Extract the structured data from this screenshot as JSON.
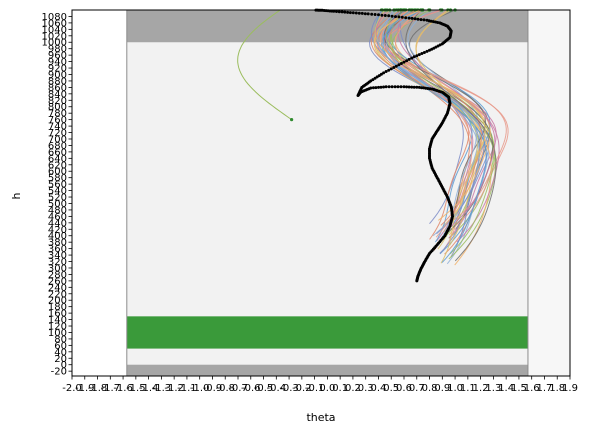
{
  "chart_data": {
    "type": "line",
    "xlabel": "theta",
    "ylabel": "h",
    "xlim": [
      -2.0,
      1.9
    ],
    "ylim": [
      -35,
      1100
    ],
    "grid": false,
    "legend": "none",
    "x_tick_labels": [
      "-2.0",
      "-1.9",
      "-1.8",
      "-1.7",
      "-1.6",
      "-1.5",
      "-1.4",
      "-1.3",
      "-1.2",
      "-1.1",
      "-1.0",
      "-0.9",
      "-0.8",
      "-0.7",
      "-0.6",
      "-0.5",
      "-0.4",
      "-0.3",
      "-0.2",
      "-0.1",
      "0.0",
      "0.1",
      "0.2",
      "0.3",
      "0.4",
      "0.5",
      "0.6",
      "0.7",
      "0.8",
      "0.9",
      "1.0",
      "1.1",
      "1.2",
      "1.3",
      "1.4",
      "1.5",
      "1.6",
      "1.7",
      "1.8",
      "1.9"
    ],
    "y_tick_labels": [
      "-20",
      "0",
      "20",
      "40",
      "60",
      "80",
      "100",
      "120",
      "140",
      "160",
      "180",
      "200",
      "220",
      "240",
      "260",
      "280",
      "300",
      "320",
      "340",
      "360",
      "380",
      "400",
      "420",
      "440",
      "460",
      "480",
      "500",
      "520",
      "540",
      "560",
      "580",
      "600",
      "620",
      "640",
      "660",
      "680",
      "700",
      "720",
      "740",
      "760",
      "780",
      "800",
      "820",
      "840",
      "860",
      "880",
      "900",
      "920",
      "940",
      "960",
      "980",
      "1000",
      "1020",
      "1040",
      "1060",
      "1080"
    ],
    "bounds": {
      "x_left": -1.5708,
      "x_right": 1.5708
    },
    "regions": [
      {
        "name": "bottom-band",
        "x": [
          -1.5708,
          1.5708
        ],
        "y": [
          -35,
          0
        ],
        "color": "#a6a6a6"
      },
      {
        "name": "top-band",
        "x": [
          -1.5708,
          1.5708
        ],
        "y": [
          1000,
          1100
        ],
        "color": "#a6a6a6"
      },
      {
        "name": "target-band",
        "x": [
          -1.5708,
          1.5708
        ],
        "y": [
          50,
          150
        ],
        "color": "#3a9a3a"
      }
    ],
    "highlight_series": {
      "name": "",
      "color": "#000000",
      "x": [
        0.7,
        0.71,
        0.73,
        0.76,
        0.8,
        0.86,
        0.92,
        0.96,
        0.98,
        0.97,
        0.94,
        0.9,
        0.86,
        0.82,
        0.8,
        0.8,
        0.82,
        0.86,
        0.9,
        0.94,
        0.96,
        0.95,
        0.9,
        0.82,
        0.72,
        0.6,
        0.46,
        0.34,
        0.26,
        0.24,
        0.27,
        0.34,
        0.44,
        0.56,
        0.68,
        0.8,
        0.9,
        0.96,
        0.97,
        0.94,
        0.88,
        0.78,
        0.64,
        0.48,
        0.32,
        0.18,
        0.05,
        -0.04,
        -0.1
      ],
      "y": [
        260,
        275,
        295,
        318,
        345,
        372,
        400,
        430,
        460,
        490,
        520,
        550,
        580,
        610,
        640,
        670,
        700,
        725,
        750,
        780,
        810,
        830,
        845,
        855,
        860,
        862,
        862,
        858,
        845,
        835,
        860,
        880,
        905,
        930,
        955,
        975,
        995,
        1015,
        1035,
        1050,
        1060,
        1068,
        1075,
        1082,
        1088,
        1092,
        1096,
        1099,
        1100
      ]
    },
    "series_summary": {
      "count": 40,
      "colors": [
        "#7b8bc7",
        "#e0876a",
        "#9bbd5e",
        "#f2b36b",
        "#6d6d6d",
        "#c97aa6",
        "#5c9bd1",
        "#d9c06a",
        "#8fb0d8",
        "#e8998a"
      ]
    }
  }
}
